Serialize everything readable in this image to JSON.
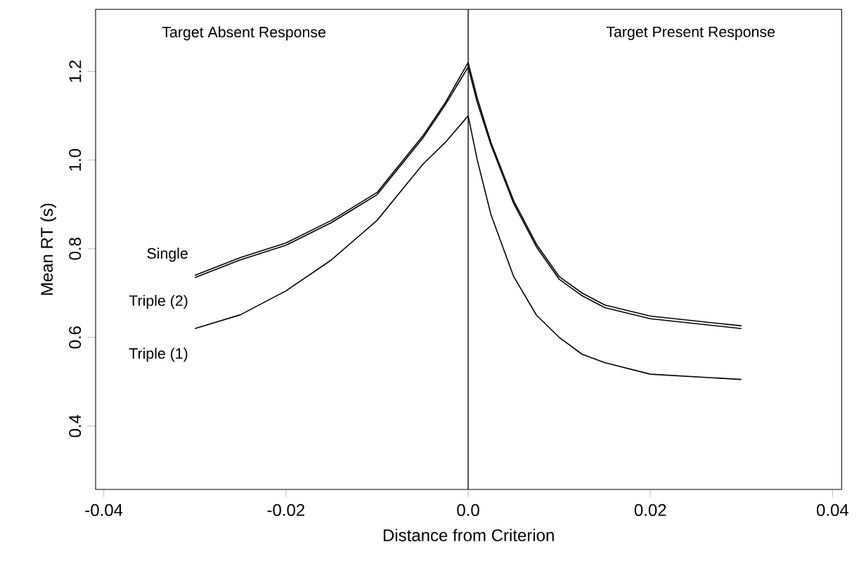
{
  "chart_data": {
    "type": "line",
    "xlabel": "Distance from Criterion",
    "ylabel": "Mean RT (s)",
    "xlim": [
      -0.0409,
      0.041
    ],
    "ylim": [
      0.257,
      1.34
    ],
    "xticks": [
      -0.04,
      -0.02,
      {
        "value": 0,
        "label": "0.0"
      },
      0.02,
      0.04
    ],
    "yticks": [
      0.4,
      0.6,
      0.8,
      {
        "value": 1.0,
        "label": "1.0"
      },
      1.2
    ],
    "x": [
      -0.03,
      -0.025,
      -0.02,
      -0.015,
      -0.01,
      -0.005,
      -0.0025,
      0,
      0.001,
      0.0025,
      0.005,
      0.0075,
      0.01,
      0.0125,
      0.015,
      0.02,
      0.03
    ],
    "series": [
      {
        "name": "Single",
        "color": "#000000",
        "values": [
          0.74,
          0.78,
          0.813,
          0.864,
          0.927,
          1.054,
          1.13,
          1.22,
          1.14,
          1.04,
          0.908,
          0.81,
          0.737,
          0.7,
          0.673,
          0.648,
          0.626
        ]
      },
      {
        "name": "Triple (2)",
        "color": "#000000",
        "values": [
          0.735,
          0.775,
          0.808,
          0.859,
          0.922,
          1.049,
          1.125,
          1.21,
          1.13,
          1.034,
          0.902,
          0.804,
          0.731,
          0.694,
          0.667,
          0.642,
          0.62
        ]
      },
      {
        "name": "Triple (1)",
        "color": "#000000",
        "values": [
          0.62,
          0.651,
          0.705,
          0.775,
          0.864,
          0.99,
          1.04,
          1.1,
          1.0,
          0.877,
          0.737,
          0.65,
          0.6,
          0.562,
          0.543,
          0.517,
          0.505
        ]
      }
    ],
    "ref_lines": [
      {
        "axis": "x",
        "value": 0,
        "color": "#000000"
      }
    ],
    "annotations": [
      "Target Absent Response",
      "Target Present Response"
    ],
    "legend": false,
    "marker": "none",
    "line_style": "solid"
  }
}
